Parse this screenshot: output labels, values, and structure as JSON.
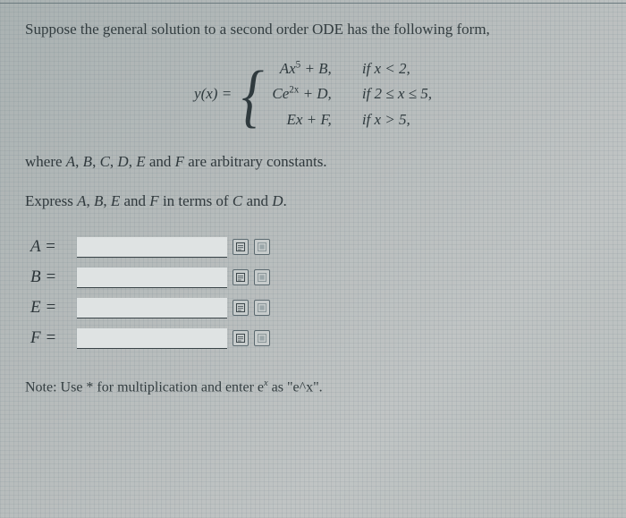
{
  "prompt": "Suppose the general solution to a second order ODE has the following form,",
  "equation": {
    "lhs": "y(x) =",
    "cases": [
      {
        "expr_html": "Ax<sup>5</sup> + B,",
        "cond_html": "if x &lt; 2,"
      },
      {
        "expr_html": "Ce<sup>2x</sup> + D,",
        "cond_html": "if 2 &le; x &le; 5,"
      },
      {
        "expr_html": "Ex + F,",
        "cond_html": "if x &gt; 5,"
      }
    ]
  },
  "where_html": "where <span class=\"mi\">A</span>, <span class=\"mi\">B</span>, <span class=\"mi\">C</span>, <span class=\"mi\">D</span>, <span class=\"mi\">E</span> and <span class=\"mi\">F</span> are arbitrary constants.",
  "express_html": "Express <span class=\"mi\">A</span>, <span class=\"mi\">B</span>, <span class=\"mi\">E</span> and <span class=\"mi\">F</span> in terms of <span class=\"mi\">C</span> and <span class=\"mi\">D</span>.",
  "answers": [
    {
      "label": "A =",
      "name": "a",
      "value": ""
    },
    {
      "label": "B =",
      "name": "b",
      "value": ""
    },
    {
      "label": "E =",
      "name": "e",
      "value": ""
    },
    {
      "label": "F =",
      "name": "f",
      "value": ""
    }
  ],
  "note_html": "Note: Use * for multiplication and enter e<sup><span class=\"mi\">x</span></sup> as \"e^x\".",
  "icons": {
    "preview": "preview-icon",
    "help": "help-icon"
  },
  "colors": {
    "text": "#2a3338",
    "rule": "#3a4448",
    "icon_border": "#5c6a70",
    "icon_bg": "#c7cccc",
    "input_bg": "#dfe3e3"
  }
}
